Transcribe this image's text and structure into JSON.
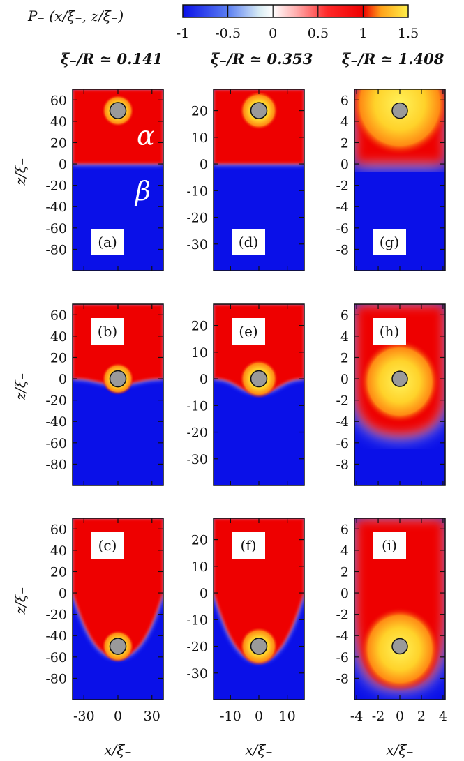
{
  "colorbar": {
    "label": "P₋ (x/ξ₋, z/ξ₋)",
    "ticks": [
      "-1",
      "-0.5",
      "0",
      "0.5",
      "1",
      "1.5"
    ],
    "range": [
      -1,
      1.5
    ],
    "stops": [
      {
        "value": -1,
        "color": "#0a10e8"
      },
      {
        "value": -0.5,
        "color": "#5a7ef2"
      },
      {
        "value": -0.15,
        "color": "#d8ecf4"
      },
      {
        "value": 0,
        "color": "#ffffff"
      },
      {
        "value": 0.25,
        "color": "#ffb0b0"
      },
      {
        "value": 0.6,
        "color": "#ff2a2a"
      },
      {
        "value": 1.0,
        "color": "#ee0000"
      },
      {
        "value": 1.2,
        "color": "#ffa21a"
      },
      {
        "value": 1.5,
        "color": "#fff04a"
      }
    ]
  },
  "colors": {
    "alpha_phase": "#ee0000",
    "beta_phase": "#0a10e8",
    "particle": "#9a9a9a",
    "hot": "#fff04a"
  },
  "columns": [
    {
      "title": "ξ₋/R ≃ 0.141",
      "xlim": [
        -40,
        40
      ],
      "ylim": [
        -100,
        70
      ],
      "xticks": [
        -30,
        0,
        30
      ],
      "yticks": [
        60,
        40,
        20,
        0,
        -20,
        -40,
        -60,
        -80
      ],
      "xtick_labels": [
        "-30",
        "0",
        "30"
      ],
      "ytick_labels": [
        "60",
        "40",
        "20",
        "0",
        "-20",
        "-40",
        "-60",
        "-80"
      ],
      "radius": 7.1
    },
    {
      "title": "ξ₋/R ≃ 0.353",
      "xlim": [
        -16,
        16
      ],
      "ylim": [
        -40,
        28
      ],
      "xticks": [
        -10,
        0,
        10
      ],
      "yticks": [
        20,
        10,
        0,
        -10,
        -20,
        -30
      ],
      "xtick_labels": [
        "-10",
        "0",
        "10"
      ],
      "ytick_labels": [
        "20",
        "10",
        "0",
        "-10",
        "-20",
        "-30"
      ],
      "radius": 2.83
    },
    {
      "title": "ξ₋/R ≃ 1.408",
      "xlim": [
        -4.2,
        4.2
      ],
      "ylim": [
        -10,
        7
      ],
      "xticks": [
        -4,
        -2,
        0,
        2,
        4
      ],
      "yticks": [
        6,
        4,
        2,
        0,
        -2,
        -4,
        -6,
        -8
      ],
      "xtick_labels": [
        "-4",
        "-2",
        "0",
        "2",
        "4"
      ],
      "ytick_labels": [
        "6",
        "4",
        "2",
        "0",
        "-2",
        "-4",
        "-6",
        "-8"
      ],
      "radius": 0.71
    }
  ],
  "rows": [
    {
      "particle_z": [
        50,
        20,
        5
      ]
    },
    {
      "particle_z": [
        0,
        0,
        0
      ]
    },
    {
      "particle_z": [
        -50,
        -20,
        -5
      ]
    }
  ],
  "panels": [
    [
      "(a)",
      "(d)",
      "(g)"
    ],
    [
      "(b)",
      "(e)",
      "(h)"
    ],
    [
      "(c)",
      "(f)",
      "(i)"
    ]
  ],
  "axis_labels": {
    "x": "x/ξ₋",
    "y": "z/ξ₋"
  },
  "phase_labels": {
    "alpha": "α",
    "beta": "β"
  }
}
